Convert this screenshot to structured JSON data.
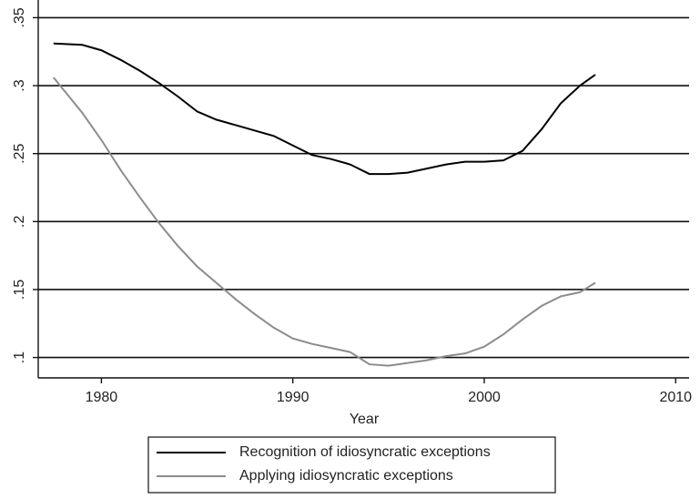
{
  "chart_data": {
    "type": "line",
    "xlabel": "Year",
    "x": [
      1977.5,
      1979,
      1980,
      1981,
      1982,
      1983,
      1984,
      1985,
      1986,
      1987,
      1988,
      1989,
      1990,
      1991,
      1992,
      1993,
      1994,
      1995,
      1996,
      1997,
      1998,
      1999,
      2000,
      2001,
      2002,
      2003,
      2004,
      2005,
      2005.8
    ],
    "series": [
      {
        "name": "Recognition of idiosyncratic exceptions",
        "color": "#000000",
        "values": [
          0.331,
          0.33,
          0.326,
          0.319,
          0.311,
          0.302,
          0.292,
          0.281,
          0.275,
          0.271,
          0.267,
          0.263,
          0.256,
          0.249,
          0.246,
          0.242,
          0.235,
          0.235,
          0.236,
          0.239,
          0.242,
          0.244,
          0.244,
          0.245,
          0.252,
          0.268,
          0.287,
          0.3,
          0.308
        ]
      },
      {
        "name": "Applying idiosyncratic exceptions",
        "color": "#8c8c8c",
        "values": [
          0.306,
          0.28,
          0.26,
          0.238,
          0.218,
          0.199,
          0.182,
          0.167,
          0.155,
          0.143,
          0.132,
          0.122,
          0.114,
          0.11,
          0.107,
          0.104,
          0.095,
          0.094,
          0.096,
          0.098,
          0.101,
          0.103,
          0.108,
          0.117,
          0.128,
          0.138,
          0.145,
          0.148,
          0.155
        ]
      }
    ],
    "xlim": [
      1976.7,
      2010.7
    ],
    "xticks": [
      1980,
      1990,
      2000,
      2010
    ],
    "ylim": [
      0.085,
      0.363
    ],
    "yticks": [
      {
        "value": 0.1,
        "label": ".1"
      },
      {
        "value": 0.15,
        "label": ".15"
      },
      {
        "value": 0.2,
        "label": ".2"
      },
      {
        "value": 0.25,
        "label": ".25"
      },
      {
        "value": 0.3,
        "label": ".3"
      },
      {
        "value": 0.35,
        "label": ".35"
      }
    ],
    "grid": true,
    "legend": "bottom"
  }
}
